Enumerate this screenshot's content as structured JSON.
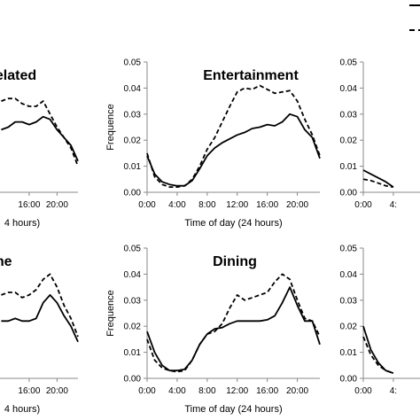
{
  "chart_data": [
    {
      "type": "line",
      "panel": "top-left (cropped)",
      "title": "elated",
      "xlabel": "4 hours)",
      "x_ticks": [
        "16:00",
        "20:00"
      ],
      "x": [
        12,
        13,
        14,
        15,
        16,
        17,
        18,
        19,
        20,
        21,
        22,
        23
      ],
      "series": [
        {
          "style": "solid",
          "values": [
            0.024,
            0.025,
            0.027,
            0.027,
            0.026,
            0.027,
            0.029,
            0.028,
            0.024,
            0.021,
            0.018,
            0.012
          ]
        },
        {
          "style": "dashed",
          "values": [
            0.035,
            0.036,
            0.036,
            0.034,
            0.033,
            0.033,
            0.035,
            0.03,
            0.025,
            0.021,
            0.017,
            0.01
          ]
        }
      ]
    },
    {
      "type": "line",
      "panel": "top-middle",
      "title": "Entertainment",
      "xlabel": "Time of day (24 hours)",
      "ylabel": "Frequence",
      "x_ticks": [
        "0:00",
        "4:00",
        "8:00",
        "12:00",
        "16:00",
        "20:00"
      ],
      "y_ticks": [
        "0.00",
        "0.01",
        "0.02",
        "0.03",
        "0.04",
        "0.05"
      ],
      "xlim": [
        0,
        23
      ],
      "ylim": [
        0,
        0.05
      ],
      "x": [
        0,
        1,
        2,
        3,
        4,
        5,
        6,
        7,
        8,
        9,
        10,
        11,
        12,
        13,
        14,
        15,
        16,
        17,
        18,
        19,
        20,
        21,
        22,
        23
      ],
      "series": [
        {
          "style": "solid",
          "values": [
            0.014,
            0.007,
            0.004,
            0.003,
            0.0025,
            0.0025,
            0.0045,
            0.009,
            0.014,
            0.017,
            0.019,
            0.0205,
            0.022,
            0.023,
            0.0245,
            0.025,
            0.026,
            0.0255,
            0.027,
            0.03,
            0.029,
            0.024,
            0.021,
            0.013
          ]
        },
        {
          "style": "dashed",
          "values": [
            0.015,
            0.006,
            0.003,
            0.002,
            0.002,
            0.0025,
            0.005,
            0.01,
            0.0165,
            0.021,
            0.027,
            0.033,
            0.0385,
            0.04,
            0.0395,
            0.041,
            0.0395,
            0.038,
            0.0385,
            0.039,
            0.035,
            0.028,
            0.022,
            0.014
          ]
        }
      ]
    },
    {
      "type": "line",
      "panel": "top-right (cropped)",
      "y_ticks": [
        "0.00",
        "0.01",
        "0.02",
        "0.03",
        "0.04",
        "0.05"
      ],
      "x_ticks": [
        "0:00",
        "4:"
      ],
      "ylim": [
        0,
        0.05
      ],
      "x": [
        0,
        1,
        2,
        3,
        4
      ],
      "series": [
        {
          "style": "solid",
          "values": [
            0.0085,
            0.007,
            0.0055,
            0.004,
            0.002
          ]
        },
        {
          "style": "dashed",
          "values": [
            0.005,
            0.0045,
            0.0035,
            0.0025,
            0.002
          ]
        }
      ]
    },
    {
      "type": "line",
      "panel": "bottom-left (cropped)",
      "title": "me",
      "xlabel": "4 hours)",
      "x_ticks": [
        "16:00",
        "20:00"
      ],
      "x": [
        12,
        13,
        14,
        15,
        16,
        17,
        18,
        19,
        20,
        21,
        22,
        23
      ],
      "series": [
        {
          "style": "solid",
          "values": [
            0.022,
            0.022,
            0.023,
            0.022,
            0.022,
            0.023,
            0.029,
            0.032,
            0.029,
            0.024,
            0.02,
            0.014
          ]
        },
        {
          "style": "dashed",
          "values": [
            0.032,
            0.033,
            0.033,
            0.031,
            0.032,
            0.034,
            0.038,
            0.04,
            0.035,
            0.028,
            0.023,
            0.016
          ]
        }
      ]
    },
    {
      "type": "line",
      "panel": "bottom-middle",
      "title": "Dining",
      "xlabel": "Time of day (24 hours)",
      "ylabel": "Frequence",
      "x_ticks": [
        "0:00",
        "4:00",
        "8:00",
        "12:00",
        "16:00",
        "20:00"
      ],
      "y_ticks": [
        "0.00",
        "0.01",
        "0.02",
        "0.03",
        "0.04",
        "0.05"
      ],
      "xlim": [
        0,
        23
      ],
      "ylim": [
        0,
        0.05
      ],
      "x": [
        0,
        1,
        2,
        3,
        4,
        5,
        6,
        7,
        8,
        9,
        10,
        11,
        12,
        13,
        14,
        15,
        16,
        17,
        18,
        19,
        20,
        21,
        22,
        23
      ],
      "series": [
        {
          "style": "solid",
          "values": [
            0.018,
            0.01,
            0.005,
            0.003,
            0.003,
            0.0035,
            0.007,
            0.013,
            0.017,
            0.019,
            0.0195,
            0.021,
            0.022,
            0.022,
            0.022,
            0.022,
            0.0225,
            0.024,
            0.029,
            0.035,
            0.028,
            0.022,
            0.022,
            0.013
          ]
        },
        {
          "style": "dashed",
          "values": [
            0.015,
            0.007,
            0.004,
            0.003,
            0.0025,
            0.003,
            0.007,
            0.013,
            0.017,
            0.018,
            0.021,
            0.027,
            0.032,
            0.03,
            0.031,
            0.032,
            0.033,
            0.037,
            0.04,
            0.038,
            0.03,
            0.023,
            0.022,
            0.016
          ]
        }
      ]
    },
    {
      "type": "line",
      "panel": "bottom-right (cropped)",
      "y_ticks": [
        "0.00",
        "0.01",
        "0.02",
        "0.03",
        "0.04",
        "0.05"
      ],
      "x_ticks": [
        "0:00",
        "4:"
      ],
      "ylim": [
        0,
        0.05
      ],
      "x": [
        0,
        1,
        2,
        3,
        4
      ],
      "series": [
        {
          "style": "solid",
          "values": [
            0.02,
            0.011,
            0.006,
            0.003,
            0.002
          ]
        },
        {
          "style": "dashed",
          "values": [
            0.016,
            0.009,
            0.005,
            0.003,
            0.002
          ]
        }
      ]
    }
  ]
}
